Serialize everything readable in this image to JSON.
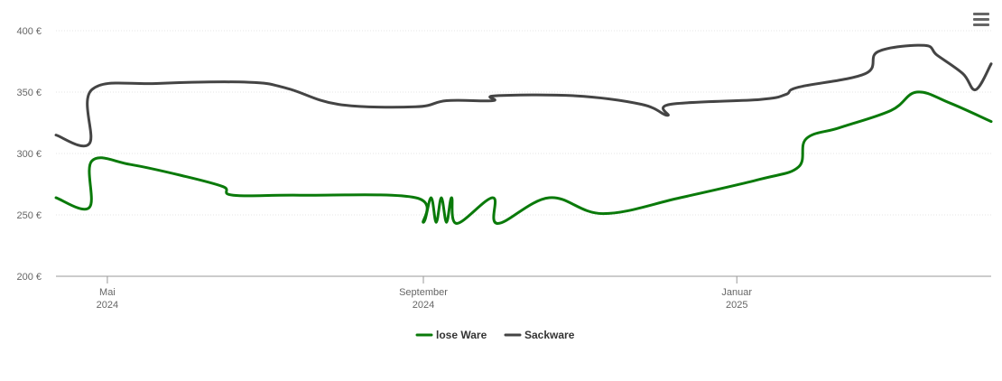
{
  "menu": {
    "icon": "hamburger-menu-icon"
  },
  "chart_data": {
    "type": "line",
    "title": "",
    "xlabel": "",
    "ylabel": "",
    "ylim": [
      200,
      400
    ],
    "y_ticks": [
      "200 €",
      "250 €",
      "300 €",
      "350 €",
      "400 €"
    ],
    "y_tick_values": [
      200,
      250,
      300,
      350,
      400
    ],
    "x_ticks": [
      {
        "date": "2024-05-01",
        "month": "Mai",
        "year": "2024"
      },
      {
        "date": "2024-09-01",
        "month": "September",
        "year": "2024"
      },
      {
        "date": "2025-01-01",
        "month": "Januar",
        "year": "2025"
      }
    ],
    "xlim": [
      "2024-04-11",
      "2025-04-10"
    ],
    "grid": true,
    "legend_position": "bottom-center",
    "series": [
      {
        "name": "lose Ware",
        "color": "#0a7a0a",
        "points": [
          [
            "2024-04-11",
            264
          ],
          [
            "2024-04-24",
            256
          ],
          [
            "2024-04-25",
            294
          ],
          [
            "2024-05-10",
            291
          ],
          [
            "2024-05-30",
            282
          ],
          [
            "2024-06-15",
            273
          ],
          [
            "2024-06-19",
            266
          ],
          [
            "2024-07-15",
            266
          ],
          [
            "2024-08-29",
            264
          ],
          [
            "2024-09-01",
            244
          ],
          [
            "2024-09-04",
            264
          ],
          [
            "2024-09-06",
            244
          ],
          [
            "2024-09-08",
            264
          ],
          [
            "2024-09-10",
            244
          ],
          [
            "2024-09-12",
            264
          ],
          [
            "2024-09-14",
            243
          ],
          [
            "2024-09-28",
            264
          ],
          [
            "2024-09-30",
            243
          ],
          [
            "2024-10-20",
            264
          ],
          [
            "2024-11-10",
            251
          ],
          [
            "2024-12-10",
            264
          ],
          [
            "2025-01-10",
            279
          ],
          [
            "2025-01-25",
            289
          ],
          [
            "2025-01-28",
            312
          ],
          [
            "2025-02-10",
            321
          ],
          [
            "2025-03-02",
            335
          ],
          [
            "2025-03-12",
            350
          ],
          [
            "2025-03-25",
            341
          ],
          [
            "2025-04-10",
            326
          ]
        ]
      },
      {
        "name": "Sackware",
        "color": "#444444",
        "points": [
          [
            "2024-04-11",
            315
          ],
          [
            "2024-04-24",
            308
          ],
          [
            "2024-04-25",
            352
          ],
          [
            "2024-05-20",
            357
          ],
          [
            "2024-06-25",
            358
          ],
          [
            "2024-07-10",
            353
          ],
          [
            "2024-07-30",
            340
          ],
          [
            "2024-08-29",
            338
          ],
          [
            "2024-09-10",
            343
          ],
          [
            "2024-09-28",
            343
          ],
          [
            "2024-09-29",
            347
          ],
          [
            "2024-10-30",
            347
          ],
          [
            "2024-11-25",
            340
          ],
          [
            "2024-12-05",
            331
          ],
          [
            "2024-12-06",
            340
          ],
          [
            "2025-01-10",
            344
          ],
          [
            "2025-01-20",
            348
          ],
          [
            "2025-01-25",
            354
          ],
          [
            "2025-02-20",
            365
          ],
          [
            "2025-02-25",
            383
          ],
          [
            "2025-03-15",
            388
          ],
          [
            "2025-03-20",
            380
          ],
          [
            "2025-03-30",
            365
          ],
          [
            "2025-04-04",
            352
          ],
          [
            "2025-04-10",
            373
          ]
        ]
      }
    ]
  }
}
